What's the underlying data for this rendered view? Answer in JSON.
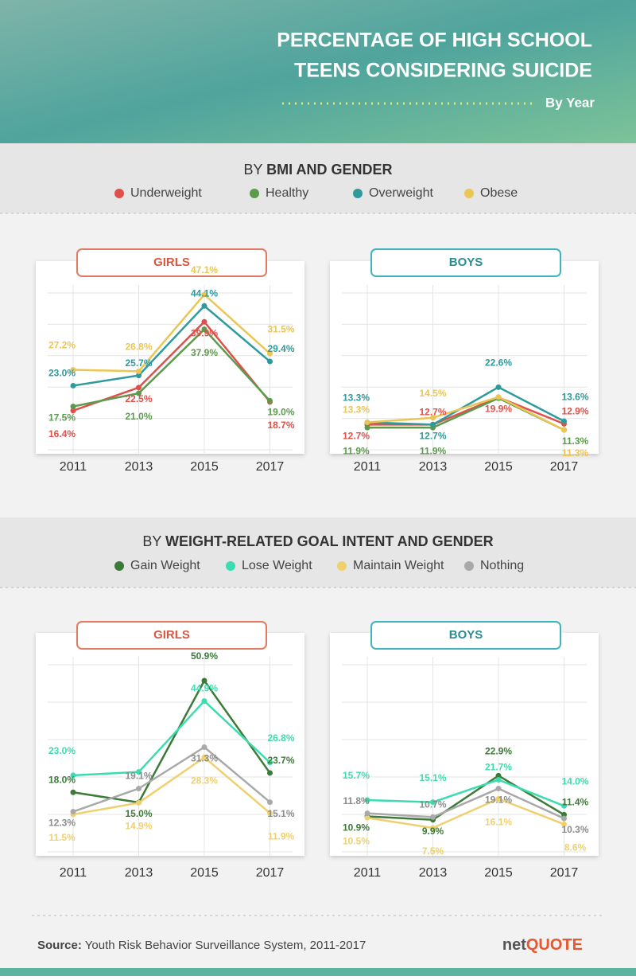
{
  "header": {
    "title_lines": [
      "PERCENTAGE OF HIGH SCHOOL",
      "TEENS CONSIDERING SUICIDE"
    ],
    "subtitle": "By Year"
  },
  "sections": [
    {
      "prefix": "BY ",
      "title": "BMI AND GENDER"
    },
    {
      "prefix": "BY ",
      "title": "WEIGHT-RELATED GOAL INTENT AND GENDER"
    }
  ],
  "chart_data": [
    {
      "type": "line",
      "title": "GIRLS",
      "categories": [
        "2011",
        "2013",
        "2015",
        "2017"
      ],
      "series": [
        {
          "name": "Underweight",
          "color": "#e0504a",
          "values": [
            16.4,
            22.5,
            39.9,
            18.7
          ],
          "value_labels": [
            "16.4%",
            "22.5%",
            "39.9%",
            "18.7%"
          ]
        },
        {
          "name": "Healthy",
          "color": "#5c9b4c",
          "values": [
            17.5,
            21.0,
            37.9,
            19.0
          ],
          "value_labels": [
            "17.5%",
            "21.0%",
            "37.9%",
            "19.0%"
          ]
        },
        {
          "name": "Overweight",
          "color": "#2e9a9c",
          "values": [
            23.0,
            25.7,
            44.1,
            29.4
          ],
          "value_labels": [
            "23.0%",
            "25.7%",
            "44.1%",
            "29.4%"
          ]
        },
        {
          "name": "Obese",
          "color": "#ebc655",
          "values": [
            27.2,
            26.8,
            47.1,
            31.5
          ],
          "value_labels": [
            "27.2%",
            "26.8%",
            "47.1%",
            "31.5%"
          ]
        }
      ]
    },
    {
      "type": "line",
      "title": "BOYS",
      "categories": [
        "2011",
        "2013",
        "2015",
        "2017"
      ],
      "series": [
        {
          "color": "#e0504a",
          "values": [
            12.7,
            12.7,
            19.9,
            12.9
          ],
          "value_labels": [
            "12.7%",
            "12.7%",
            "19.9%",
            "12.9%"
          ]
        },
        {
          "color": "#5c9b4c",
          "values": [
            11.9,
            11.9,
            19.7,
            11.3
          ],
          "value_labels": [
            "11.9%",
            "11.9%",
            null,
            "11.3%"
          ]
        },
        {
          "color": "#2e9a9c",
          "values": [
            13.3,
            12.7,
            22.6,
            13.6
          ],
          "value_labels": [
            "13.3%",
            "12.7%",
            "22.6%",
            "13.6%"
          ]
        },
        {
          "color": "#ebc655",
          "values": [
            13.3,
            14.5,
            20.0,
            11.3
          ],
          "value_labels": [
            "13.3%",
            "14.5%",
            null,
            "11.3%"
          ]
        }
      ]
    },
    {
      "type": "line",
      "title": "GIRLS",
      "categories": [
        "2011",
        "2013",
        "2015",
        "2017"
      ],
      "series": [
        {
          "name": "Gain Weight",
          "color": "#3d7a3a",
          "values": [
            18.0,
            15.0,
            50.9,
            23.7
          ],
          "value_labels": [
            "18.0%",
            "15.0%",
            "50.9%",
            "23.7%"
          ]
        },
        {
          "name": "Lose Weight",
          "color": "#3ddcb0",
          "values": [
            23.0,
            24.0,
            44.9,
            26.8
          ],
          "value_labels": [
            "23.0%",
            null,
            "44.9%",
            "26.8%"
          ]
        },
        {
          "name": "Maintain Weight",
          "color": "#efd06f",
          "values": [
            11.5,
            14.9,
            28.3,
            11.9
          ],
          "value_labels": [
            "11.5%",
            "14.9%",
            "28.3%",
            "11.9%"
          ]
        },
        {
          "name": "Nothing",
          "color": "#a9a9a9",
          "values": [
            12.3,
            19.1,
            31.3,
            15.1
          ],
          "value_labels": [
            "12.3%",
            "19.1%",
            "31.3%",
            "15.1%"
          ]
        }
      ]
    },
    {
      "type": "line",
      "title": "BOYS",
      "categories": [
        "2011",
        "2013",
        "2015",
        "2017"
      ],
      "series": [
        {
          "color": "#3d7a3a",
          "values": [
            10.9,
            9.9,
            22.9,
            11.4
          ],
          "value_labels": [
            "10.9%",
            "9.9%",
            "22.9%",
            "11.4%"
          ]
        },
        {
          "color": "#3ddcb0",
          "values": [
            15.7,
            15.1,
            21.7,
            14.0
          ],
          "value_labels": [
            "15.7%",
            "15.1%",
            "21.7%",
            "14.0%"
          ]
        },
        {
          "color": "#efd06f",
          "values": [
            10.5,
            7.5,
            16.1,
            8.6
          ],
          "value_labels": [
            "10.5%",
            "7.5%",
            "16.1%",
            "8.6%"
          ]
        },
        {
          "color": "#a9a9a9",
          "values": [
            11.8,
            10.7,
            19.1,
            10.3
          ],
          "value_labels": [
            "11.8%",
            "10.7%",
            "19.1%",
            "10.3%"
          ]
        }
      ]
    }
  ],
  "footer": {
    "source_label": "Source:",
    "source": "Youth Risk Behavior Surveillance System, 2011-2017",
    "logo_prefix": "net",
    "logo_brand": "QUOTE"
  }
}
